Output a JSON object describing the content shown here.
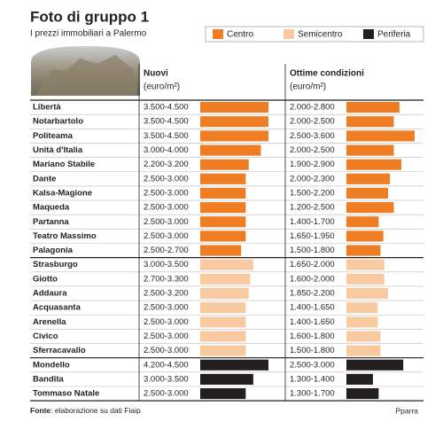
{
  "chart_data": {
    "type": "bar",
    "title": "Foto di gruppo 1",
    "subtitle": "I prezzi immobiliari a Palermo",
    "col1_title": "Nuovi",
    "col1_unit": "(euro/m²)",
    "col2_title": "Ottime condizioni",
    "col2_unit": "(euro/m²)",
    "source_label": "Fonte",
    "source": ": elaborazione su dati Fiaip",
    "credit": "Pparra",
    "series": [
      {
        "name": "Centro",
        "color": "#ef7d23",
        "categories": [
          "Libertà",
          "Notarbartolo",
          "Politeama",
          "Unità d'Italia",
          "Mariano Stabile",
          "Dante",
          "Kalsa-Magione",
          "Maqueda",
          "Partanna",
          "Teatro Massimo",
          "Palagonia"
        ],
        "values": [
          4500,
          4500,
          4500,
          4000,
          3200,
          3000,
          3000,
          3000,
          3000,
          3000,
          2700
        ],
        "value_labels": [
          "3.500-4.500",
          "3.500-4.500",
          "3.500-4.500",
          "3.000-4.000",
          "2.200-3.200",
          "2.500-3.000",
          "2.500-3.000",
          "2.500-3.000",
          "2.500-3.000",
          "2.500-3.000",
          "2.500-2.700"
        ],
        "values2": [
          2800,
          2500,
          3600,
          2500,
          2900,
          2300,
          2200,
          2500,
          1700,
          1950,
          1800
        ],
        "value_labels2": [
          "2.000-2.800",
          "2.000-2.500",
          "2.500-3.600",
          "2.000-2.500",
          "1.900-2.900",
          "2.000-2.300",
          "1.500-2.200",
          "1.200-2.500",
          "1.400-1.700",
          "1.650-1.950",
          "1.500-1.800"
        ]
      },
      {
        "name": "Semicentro",
        "color": "#f9c9a0",
        "categories": [
          "Strasburgo",
          "Giotto",
          "Addaura",
          "Acquasanta",
          "Arenella",
          "Civico",
          "Sferracavallo"
        ],
        "values": [
          3500,
          3300,
          3200,
          3000,
          3000,
          3000,
          3000
        ],
        "value_labels": [
          "3.000-3.500",
          "2.700-3.300",
          "2.500-3.200",
          "2.500-3.000",
          "2.500-3.000",
          "2.500-3.000",
          "2.500-3.000"
        ],
        "values2": [
          2000,
          2000,
          2200,
          1650,
          1650,
          1800,
          1800
        ],
        "value_labels2": [
          "1.650-2.000",
          "1.600-2.000",
          "1.850-2.200",
          "1.400-1.650",
          "1.400-1.650",
          "1.600-1.800",
          "1.500-1.800"
        ]
      },
      {
        "name": "Periferia",
        "color": "#231f20",
        "categories": [
          "Mondello",
          "Bandita",
          "Tommaso Natale"
        ],
        "values": [
          4500,
          3500,
          3000
        ],
        "value_labels": [
          "4.200-4.500",
          "3.000-3.500",
          "2.500-3.000"
        ],
        "values2": [
          3000,
          1400,
          1700
        ],
        "value_labels2": [
          "2.500-3.000",
          "1.300-1.400",
          "1.300-1.700"
        ]
      }
    ]
  }
}
